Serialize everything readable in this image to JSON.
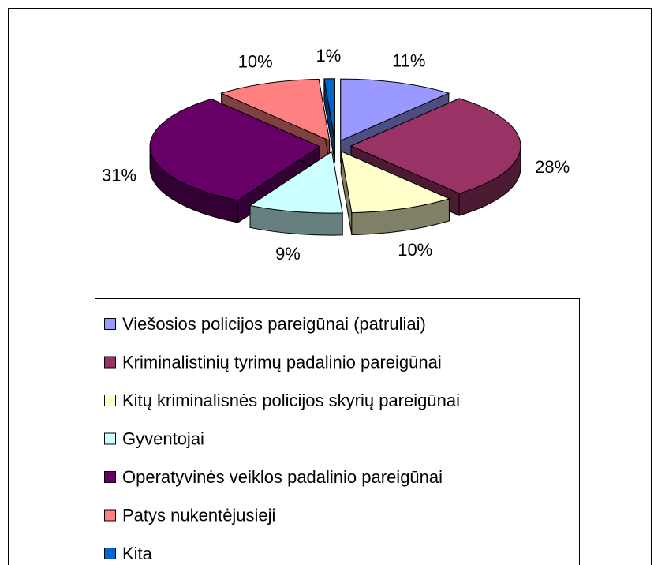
{
  "chart_data": {
    "type": "pie3d",
    "categories": [
      "Viešosios policijos pareigūnai (patruliai)",
      "Kriminalistinių tyrimų padalinio pareigūnai",
      "Kitų kriminalisnės policijos skyrių pareigūnai",
      "Gyventojai",
      "Operatyvinės veiklos padalinio pareigūnai",
      "Patys nukentėjusieji",
      "Kita"
    ],
    "values": [
      11,
      28,
      10,
      9,
      31,
      10,
      1
    ],
    "value_labels": [
      "11%",
      "28%",
      "10%",
      "9%",
      "31%",
      "10%",
      "1%"
    ],
    "colors": [
      "#9999ff",
      "#993366",
      "#ffffcc",
      "#ccffff",
      "#660066",
      "#ff8080",
      "#0066cc"
    ]
  }
}
